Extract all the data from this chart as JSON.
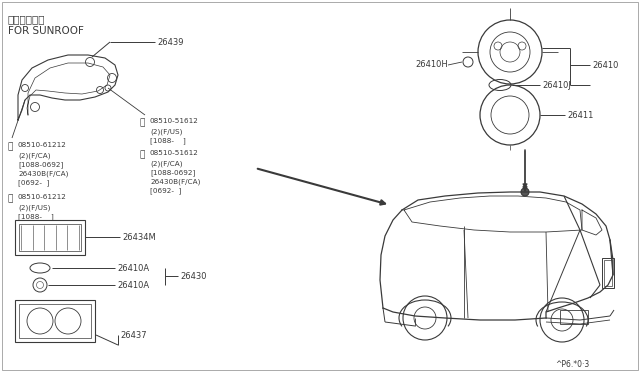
{
  "bg_color": "#ffffff",
  "line_color": "#3a3a3a",
  "text_color": "#3a3a3a",
  "label_fontsize": 6.0,
  "small_fontsize": 5.2,
  "header_jp": "サンルーフ用",
  "header_en": "FOR SUNROOF",
  "bottom_mark": "^P6.*0·3"
}
